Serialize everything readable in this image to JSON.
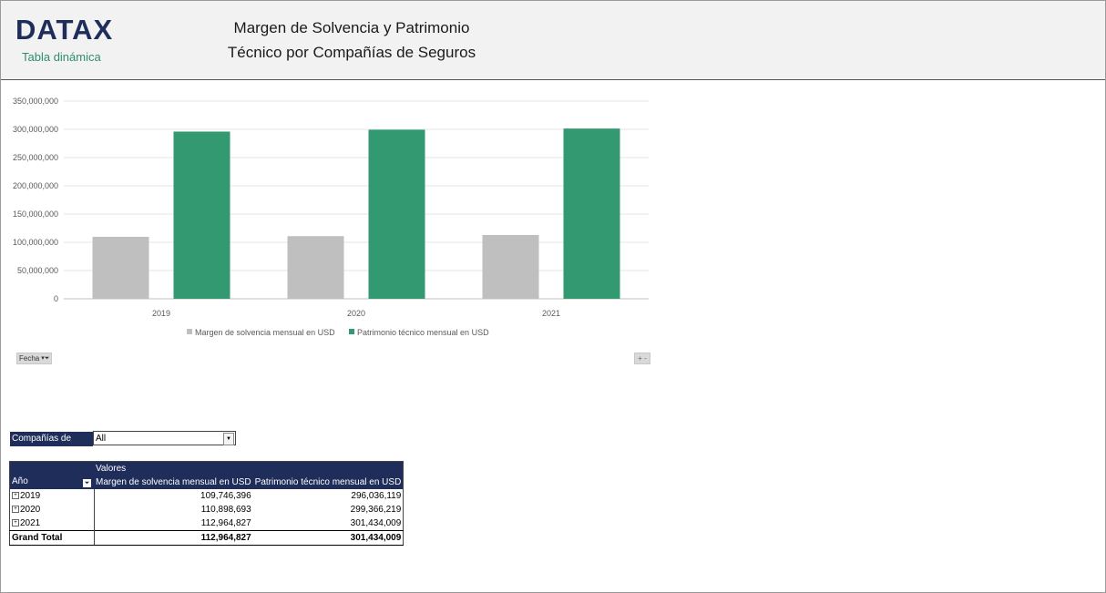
{
  "header": {
    "logo": "DATAX",
    "logo_subtitle": "Tabla dinámica",
    "title_line1": "Margen de Solvencia y Patrimonio",
    "title_line2": "Técnico por Compañías de Seguros"
  },
  "chart_controls": {
    "fecha_label": "Fecha",
    "collapse_label": "+ -"
  },
  "chart_data": {
    "type": "bar",
    "categories": [
      "2019",
      "2020",
      "2021"
    ],
    "series": [
      {
        "name": "Margen de solvencia mensual en USD",
        "values": [
          109746396,
          110898693,
          112964827
        ],
        "color": "#bfbfbf"
      },
      {
        "name": "Patrimonio técnico mensual en USD",
        "values": [
          296036119,
          299366219,
          301434009
        ],
        "color": "#339970"
      }
    ],
    "ylim": [
      0,
      350000000
    ],
    "yticks": [
      "0",
      "50,000,000",
      "100,000,000",
      "150,000,000",
      "200,000,000",
      "250,000,000",
      "300,000,000",
      "350,000,000"
    ],
    "ytick_values": [
      0,
      50000000,
      100000000,
      150000000,
      200000000,
      250000000,
      300000000,
      350000000
    ],
    "grid": true,
    "legend": "bottom"
  },
  "filter": {
    "label": "Compañías de seguro",
    "value": "All"
  },
  "pivot": {
    "values_header": "Valores",
    "row_header": "Año",
    "col_headers": [
      "Margen de solvencia mensual en USD",
      "Patrimonio técnico mensual en USD"
    ],
    "rows": [
      {
        "year": "2019",
        "margen": "109,746,396",
        "patrimonio": "296,036,119"
      },
      {
        "year": "2020",
        "margen": "110,898,693",
        "patrimonio": "299,366,219"
      },
      {
        "year": "2021",
        "margen": "112,964,827",
        "patrimonio": "301,434,009"
      }
    ],
    "grand_total_label": "Grand Total",
    "grand_total_margen": "112,964,827",
    "grand_total_patrimonio": "301,434,009"
  }
}
